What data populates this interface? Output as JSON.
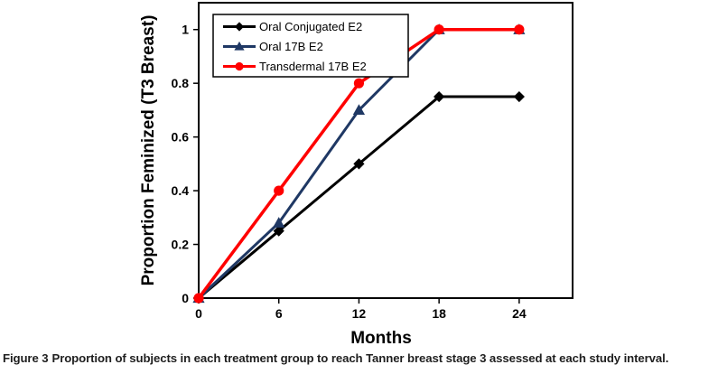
{
  "figure": {
    "caption_label": "Figure 3",
    "caption_text": "Proportion of subjects in each treatment group to reach Tanner breast stage 3 assessed at each study interval."
  },
  "chart_data": {
    "type": "line",
    "x": [
      0,
      6,
      12,
      18,
      24
    ],
    "series": [
      {
        "name": "Oral Conjugated E2",
        "color": "#000000",
        "marker": "diamond",
        "values": [
          0,
          0.25,
          0.5,
          0.75,
          0.75
        ]
      },
      {
        "name": "Oral 17B E2",
        "color": "#1F3864",
        "marker": "triangle",
        "values": [
          0,
          0.28,
          0.7,
          1,
          1
        ]
      },
      {
        "name": "Transdermal 17B E2",
        "color": "#FF0000",
        "marker": "circle",
        "values": [
          0,
          0.4,
          0.8,
          1,
          1
        ]
      }
    ],
    "title": "",
    "xlabel": "Months",
    "ylabel": "Proportion Feminized (T3 Breast)",
    "xlim": [
      0,
      28
    ],
    "ylim": [
      0,
      1.1
    ],
    "xticks": [
      0,
      6,
      12,
      18,
      24
    ],
    "xtick_labels": [
      "0",
      "6",
      "12",
      "18",
      "24"
    ],
    "yticks": [
      0,
      0.2,
      0.4,
      0.6,
      0.8,
      1
    ],
    "ytick_labels": [
      "0",
      "0.2",
      "0.4",
      "0.6",
      "0.8",
      "1"
    ],
    "grid": false,
    "legend_position": "top-left",
    "axis_color": "#000000",
    "plot_bg": "#ffffff"
  }
}
